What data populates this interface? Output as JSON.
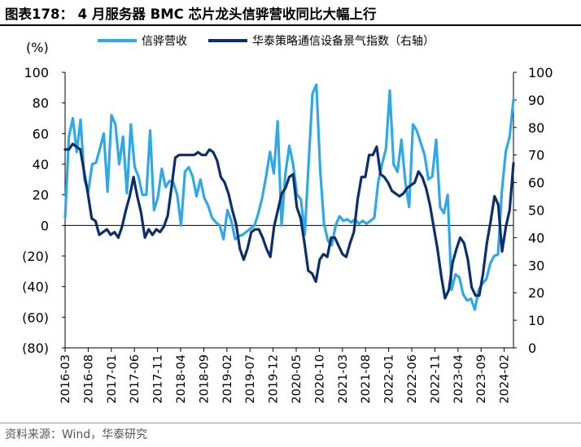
{
  "title": "图表178： 4 月服务器 BMC 芯片龙头信骅营收同比大幅上行",
  "source": "资料来源：Wind，华泰研究",
  "chart_data": {
    "type": "line",
    "title": "图表178： 4 月服务器 BMC 芯片龙头信骅营收同比大幅上行",
    "left_unit": "(%)",
    "left_axis": {
      "min": -80,
      "max": 100,
      "ticks": [
        "100",
        "80",
        "60",
        "40",
        "20",
        "0",
        "(20)",
        "(40)",
        "(60)",
        "(80)"
      ]
    },
    "right_axis": {
      "min": 0,
      "max": 100,
      "ticks": [
        "100",
        "90",
        "80",
        "70",
        "60",
        "50",
        "40",
        "30",
        "20",
        "10",
        "0"
      ]
    },
    "x_labels": [
      "2016-03",
      "2016-08",
      "2017-01",
      "2017-06",
      "2017-11",
      "2018-04",
      "2018-09",
      "2019-02",
      "2019-07",
      "2019-12",
      "2020-05",
      "2020-10",
      "2021-03",
      "2021-08",
      "2022-01",
      "2022-06",
      "2022-11",
      "2023-04",
      "2023-09",
      "2024-02"
    ],
    "x_start": "2016-03",
    "x_end": "2024-04",
    "legend_position": "top",
    "series": [
      {
        "name": "信骅营收",
        "axis": "left",
        "color": "#2fa9e6",
        "values": [
          5,
          58,
          70,
          48,
          69,
          30,
          22,
          40,
          41,
          50,
          60,
          22,
          72,
          66,
          40,
          58,
          21,
          66,
          38,
          32,
          20,
          20,
          62,
          10,
          18,
          37,
          25,
          29,
          28,
          20,
          0,
          35,
          38,
          32,
          19,
          30,
          18,
          13,
          5,
          2,
          0,
          -9,
          10,
          3,
          -9,
          -7,
          -6,
          -4,
          -2,
          0,
          8,
          18,
          32,
          48,
          34,
          68,
          0,
          34,
          52,
          40,
          20,
          17,
          -6,
          40,
          86,
          92,
          36,
          1,
          -10,
          -13,
          0,
          6,
          3,
          4,
          2,
          4,
          1,
          3,
          1,
          3,
          5,
          28,
          40,
          50,
          88,
          40,
          35,
          56,
          29,
          12,
          66,
          62,
          54,
          46,
          30,
          32,
          56,
          12,
          8,
          20,
          -42,
          -32,
          -34,
          -45,
          -49,
          -48,
          -55,
          -42,
          -38,
          -35,
          -25,
          -20,
          -19,
          22,
          48,
          58,
          82
        ]
      },
      {
        "name": "华泰策略通信设备景气指数（右轴）",
        "axis": "right",
        "color": "#0b2f6b",
        "values": [
          72,
          72,
          74,
          73,
          72,
          64,
          56,
          47,
          46,
          41,
          42,
          43,
          41,
          42,
          40,
          44,
          50,
          55,
          62,
          55,
          49,
          40,
          43,
          41,
          43,
          42,
          44,
          48,
          58,
          69,
          70,
          70,
          70,
          70,
          70,
          71,
          70,
          70,
          72,
          71,
          68,
          62,
          60,
          56,
          50,
          45,
          36,
          32,
          36,
          42,
          43,
          43,
          40,
          36,
          33,
          44,
          50,
          56,
          58,
          62,
          63,
          51,
          47,
          38,
          28,
          27,
          24,
          32,
          34,
          33,
          40,
          40,
          37,
          34,
          33,
          38,
          42,
          54,
          62,
          62,
          70,
          70,
          73,
          63,
          62,
          60,
          57,
          56,
          55,
          56,
          58,
          59,
          60,
          64,
          62,
          58,
          52,
          44,
          36,
          26,
          18,
          21,
          31,
          36,
          40,
          38,
          32,
          22,
          19,
          19,
          27,
          38,
          46,
          55,
          52,
          35,
          44,
          50,
          67
        ]
      }
    ]
  }
}
